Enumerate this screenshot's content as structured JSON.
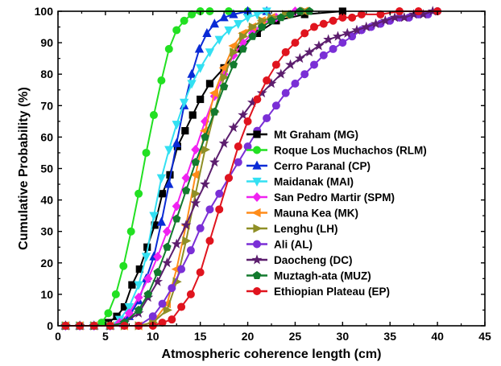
{
  "chart_data": {
    "type": "line",
    "xlabel": "Atmospheric coherence length (cm)",
    "ylabel": "Cumulative Probability (%)",
    "xlim": [
      0,
      45
    ],
    "ylim": [
      0,
      100
    ],
    "xticks": [
      "0",
      "5",
      "10",
      "15",
      "20",
      "25",
      "30",
      "35",
      "40",
      "45"
    ],
    "yticks": [
      "0",
      "10",
      "20",
      "30",
      "40",
      "50",
      "60",
      "70",
      "80",
      "90",
      "100"
    ],
    "grid": false,
    "legend_position": "center-right",
    "series": [
      {
        "name": "Mt Graham (MG)",
        "color": "#000000",
        "marker": "square",
        "x": [
          0.8,
          2.3,
          3.8,
          5.3,
          6.2,
          7.0,
          7.8,
          8.6,
          9.4,
          10.2,
          11.0,
          11.8,
          12.6,
          13.4,
          14.2,
          15.0,
          16.0,
          17.5,
          19.0,
          21.0,
          23.0,
          26.0,
          30.0
        ],
        "y": [
          0,
          0,
          0,
          1,
          3,
          6,
          13,
          18,
          25,
          32,
          42,
          48,
          57,
          62,
          67,
          72,
          77,
          82,
          88,
          93,
          97,
          99,
          100
        ]
      },
      {
        "name": "Roque Los Muchachos (RLM)",
        "color": "#22e022",
        "marker": "circle",
        "x": [
          0.8,
          2.3,
          3.8,
          4.6,
          5.3,
          6.1,
          6.9,
          7.7,
          8.5,
          9.3,
          10.1,
          10.9,
          11.7,
          12.5,
          13.3,
          14.1,
          15.0,
          16.0,
          18.0,
          20.0
        ],
        "y": [
          0,
          0,
          0,
          1,
          4,
          10,
          19,
          30,
          42,
          55,
          67,
          78,
          88,
          94,
          97,
          99,
          100,
          100,
          100,
          100
        ]
      },
      {
        "name": "Cerro Paranal (CP)",
        "color": "#0a2bd6",
        "marker": "triangle",
        "x": [
          0.8,
          2.3,
          3.8,
          5.5,
          6.5,
          7.5,
          8.5,
          9.3,
          10.1,
          10.9,
          11.7,
          12.5,
          13.3,
          14.1,
          14.9,
          15.7,
          16.5,
          17.5,
          18.5,
          20.0,
          22.0
        ],
        "y": [
          0,
          0,
          0,
          0,
          1,
          3,
          8,
          15,
          22,
          33,
          45,
          58,
          70,
          80,
          88,
          93,
          96,
          98,
          99,
          100,
          100
        ]
      },
      {
        "name": "Maidanak (MAI)",
        "color": "#33e0f2",
        "marker": "triangle-down",
        "x": [
          0.8,
          2.3,
          3.8,
          5.5,
          6.5,
          7.5,
          8.5,
          9.3,
          10.1,
          10.9,
          11.7,
          12.5,
          13.3,
          14.1,
          15.0,
          16.0,
          17.0,
          18.0,
          19.0,
          20.0,
          21.0,
          22.0
        ],
        "y": [
          0,
          0,
          0,
          0,
          2,
          6,
          13,
          22,
          35,
          47,
          56,
          64,
          71,
          77,
          82,
          87,
          91,
          94,
          96,
          98,
          99,
          100
        ]
      },
      {
        "name": "San Pedro Martir (SPM)",
        "color": "#f022f0",
        "marker": "diamond",
        "x": [
          0.8,
          2.3,
          3.8,
          5.5,
          6.5,
          7.5,
          8.5,
          9.5,
          10.5,
          11.5,
          12.5,
          13.5,
          14.5,
          15.5,
          16.5,
          17.5,
          18.5,
          19.5,
          20.5,
          21.5,
          23.0,
          25.0
        ],
        "y": [
          0,
          0,
          0,
          0,
          1,
          4,
          9,
          15,
          22,
          30,
          38,
          47,
          56,
          65,
          73,
          80,
          86,
          90,
          93,
          96,
          98,
          100
        ]
      },
      {
        "name": "Mauna Kea (MK)",
        "color": "#ff8c1a",
        "marker": "triangle-left",
        "x": [
          0.8,
          2.3,
          3.8,
          5.5,
          7.0,
          8.5,
          10.0,
          11.5,
          12.5,
          13.5,
          14.5,
          15.5,
          16.5,
          17.5,
          18.5,
          19.5,
          20.5,
          21.5,
          22.5,
          24.0,
          26.0
        ],
        "y": [
          0,
          0,
          0,
          0,
          0,
          0,
          1,
          7,
          18,
          32,
          48,
          62,
          74,
          82,
          89,
          93,
          95,
          97,
          98,
          99,
          100
        ]
      },
      {
        "name": "Lenghu (LH)",
        "color": "#8f8f26",
        "marker": "triangle-right",
        "x": [
          0.8,
          2.3,
          3.8,
          5.5,
          7.0,
          8.5,
          10.0,
          11.5,
          12.5,
          13.5,
          14.5,
          15.5,
          16.5,
          17.5,
          18.5,
          19.5,
          20.5,
          21.5,
          22.5,
          24.0,
          26.0
        ],
        "y": [
          0,
          0,
          0,
          0,
          0,
          0,
          1,
          5,
          14,
          27,
          42,
          56,
          68,
          79,
          87,
          92,
          95,
          97,
          98,
          99,
          100
        ]
      },
      {
        "name": "Ali (AL)",
        "color": "#7a2fd6",
        "marker": "circle",
        "x": [
          0.8,
          2.3,
          3.8,
          5.5,
          7.0,
          8.5,
          10.0,
          11.0,
          12.0,
          13.0,
          14.0,
          15.0,
          16.0,
          17.0,
          18.0,
          19.0,
          20.0,
          21.0,
          22.0,
          23.0,
          24.0,
          25.0,
          26.0,
          27.0,
          28.0,
          29.0,
          30.0,
          31.0,
          32.0,
          33.0,
          34.0,
          35.0,
          36.0,
          37.0,
          38.0,
          39.0,
          40.0
        ],
        "y": [
          0,
          0,
          0,
          0,
          0,
          0,
          3,
          7,
          12,
          18,
          24,
          31,
          37,
          42,
          47,
          52,
          57,
          62,
          66,
          70,
          74,
          77,
          80,
          83,
          86,
          88,
          90,
          92,
          94,
          95,
          96,
          97,
          98,
          98,
          99,
          99,
          100
        ]
      },
      {
        "name": "Daocheng (DC)",
        "color": "#5c1e6e",
        "marker": "star",
        "x": [
          0.8,
          2.3,
          3.8,
          5.5,
          7.0,
          8.5,
          9.5,
          10.5,
          11.5,
          12.5,
          13.5,
          14.5,
          15.5,
          16.5,
          17.5,
          18.5,
          19.5,
          20.5,
          21.5,
          22.5,
          23.5,
          24.5,
          25.5,
          26.5,
          27.5,
          28.5,
          29.5,
          30.5,
          31.5,
          32.5,
          33.5,
          34.5,
          35.5,
          36.5,
          37.5,
          38.5,
          39.5
        ],
        "y": [
          0,
          0,
          0,
          0,
          1,
          4,
          9,
          14,
          20,
          26,
          32,
          39,
          45,
          52,
          58,
          63,
          67,
          71,
          74,
          77,
          80,
          83,
          85,
          87,
          89,
          91,
          92,
          93,
          94,
          95,
          96,
          97,
          98,
          98,
          99,
          99,
          100
        ]
      },
      {
        "name": "Muztagh-ata (MUZ)",
        "color": "#137a2e",
        "marker": "pentagon",
        "x": [
          0.8,
          2.3,
          3.8,
          5.5,
          7.0,
          8.5,
          9.5,
          10.5,
          11.5,
          12.5,
          13.5,
          14.5,
          15.5,
          16.5,
          17.5,
          18.5,
          19.5,
          20.5,
          21.5,
          22.5,
          23.5,
          24.5,
          25.5,
          26.5
        ],
        "y": [
          0,
          0,
          0,
          0,
          1,
          5,
          10,
          17,
          25,
          34,
          43,
          52,
          60,
          68,
          76,
          83,
          88,
          92,
          95,
          97,
          98,
          99,
          100,
          100
        ]
      },
      {
        "name": "Ethiopian Plateau (EP)",
        "color": "#e0141e",
        "marker": "circle",
        "x": [
          0.8,
          2.3,
          3.8,
          5.5,
          7.0,
          8.5,
          10.0,
          11.0,
          12.0,
          13.0,
          14.0,
          15.0,
          16.0,
          17.0,
          18.0,
          19.0,
          20.0,
          21.0,
          22.0,
          23.0,
          24.0,
          25.0,
          26.0,
          27.0,
          28.0,
          29.0,
          30.0,
          31.0,
          32.0,
          34.0,
          36.0,
          38.0,
          40.0
        ],
        "y": [
          0,
          0,
          0,
          0,
          0,
          0,
          0,
          1,
          2,
          6,
          10,
          17,
          27,
          37,
          47,
          57,
          65,
          72,
          78,
          83,
          87,
          90,
          93,
          95,
          96,
          97,
          98,
          98,
          99,
          99,
          100,
          100,
          100
        ]
      }
    ]
  }
}
